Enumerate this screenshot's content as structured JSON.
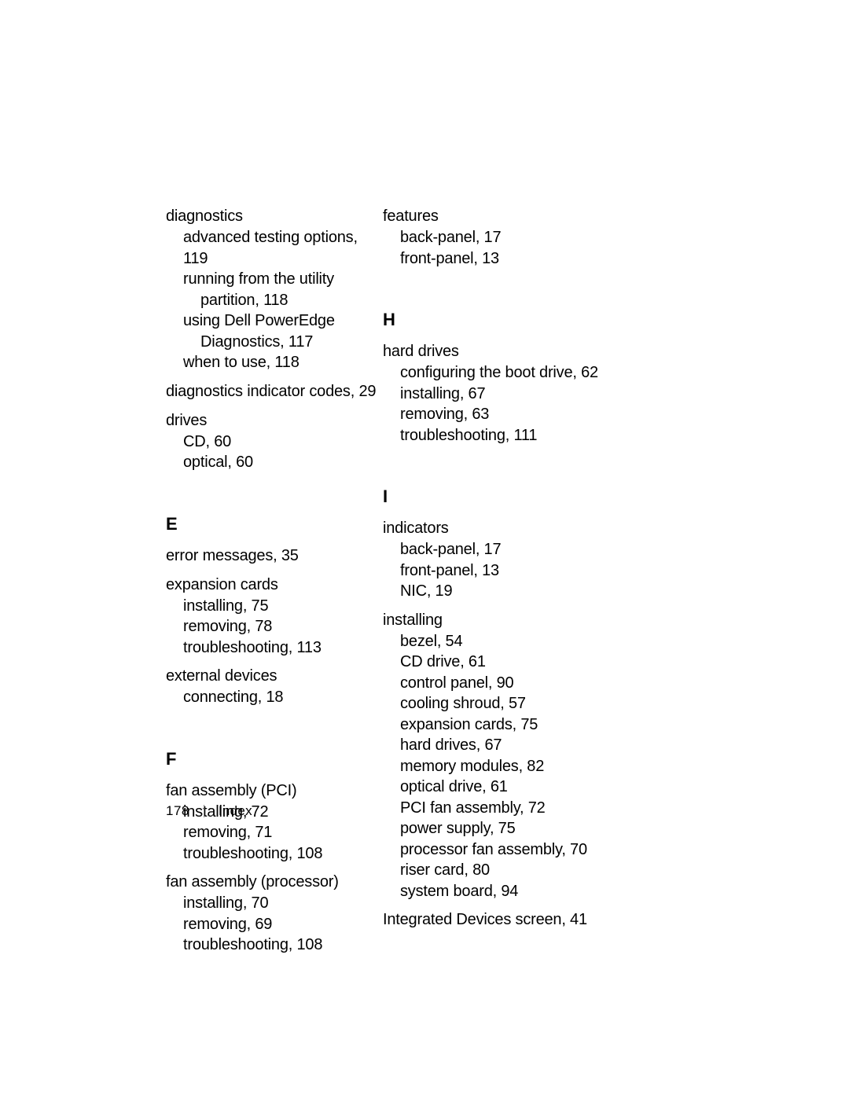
{
  "footer": {
    "page_number": "178",
    "section": "Index"
  },
  "left": {
    "g_diag": {
      "term": "diagnostics",
      "l1": "advanced testing options, 119",
      "l2a": "running from the utility",
      "l2b": "partition, 118",
      "l3a": "using Dell PowerEdge",
      "l3b": "Diagnostics, 117",
      "l4": "when to use, 118"
    },
    "g_diag_ind": {
      "term": "diagnostics indicator codes, 29"
    },
    "g_drives": {
      "term": "drives",
      "l1": "CD, 60",
      "l2": "optical, 60"
    },
    "letter_E": "E",
    "g_err": {
      "term": "error messages, 35"
    },
    "g_exp": {
      "term": "expansion cards",
      "l1": "installing, 75",
      "l2": "removing, 78",
      "l3": "troubleshooting, 113"
    },
    "g_ext": {
      "term": "external devices",
      "l1": "connecting, 18"
    },
    "letter_F": "F",
    "g_fan_pci": {
      "term": "fan assembly (PCI)",
      "l1": "installing, 72",
      "l2": "removing, 71",
      "l3": "troubleshooting, 108"
    },
    "g_fan_proc": {
      "term": "fan assembly (processor)",
      "l1": "installing, 70",
      "l2": "removing, 69",
      "l3": "troubleshooting, 108"
    }
  },
  "right": {
    "g_feat": {
      "term": "features",
      "l1": "back-panel, 17",
      "l2": "front-panel, 13"
    },
    "letter_H": "H",
    "g_hd": {
      "term": "hard drives",
      "l1": "configuring the boot drive, 62",
      "l2": "installing, 67",
      "l3": "removing, 63",
      "l4": "troubleshooting, 111"
    },
    "letter_I": "I",
    "g_ind": {
      "term": "indicators",
      "l1": "back-panel, 17",
      "l2": "front-panel, 13",
      "l3": "NIC, 19"
    },
    "g_inst": {
      "term": "installing",
      "l1": "bezel, 54",
      "l2": "CD drive, 61",
      "l3": "control panel, 90",
      "l4": "cooling shroud, 57",
      "l5": "expansion cards, 75",
      "l6": "hard drives, 67",
      "l7": "memory modules, 82",
      "l8": "optical drive, 61",
      "l9": "PCI fan assembly, 72",
      "l10": "power supply, 75",
      "l11": "processor fan assembly, 70",
      "l12": "riser card, 80",
      "l13": "system board, 94"
    },
    "g_intdev": {
      "term": "Integrated Devices screen, 41"
    }
  }
}
